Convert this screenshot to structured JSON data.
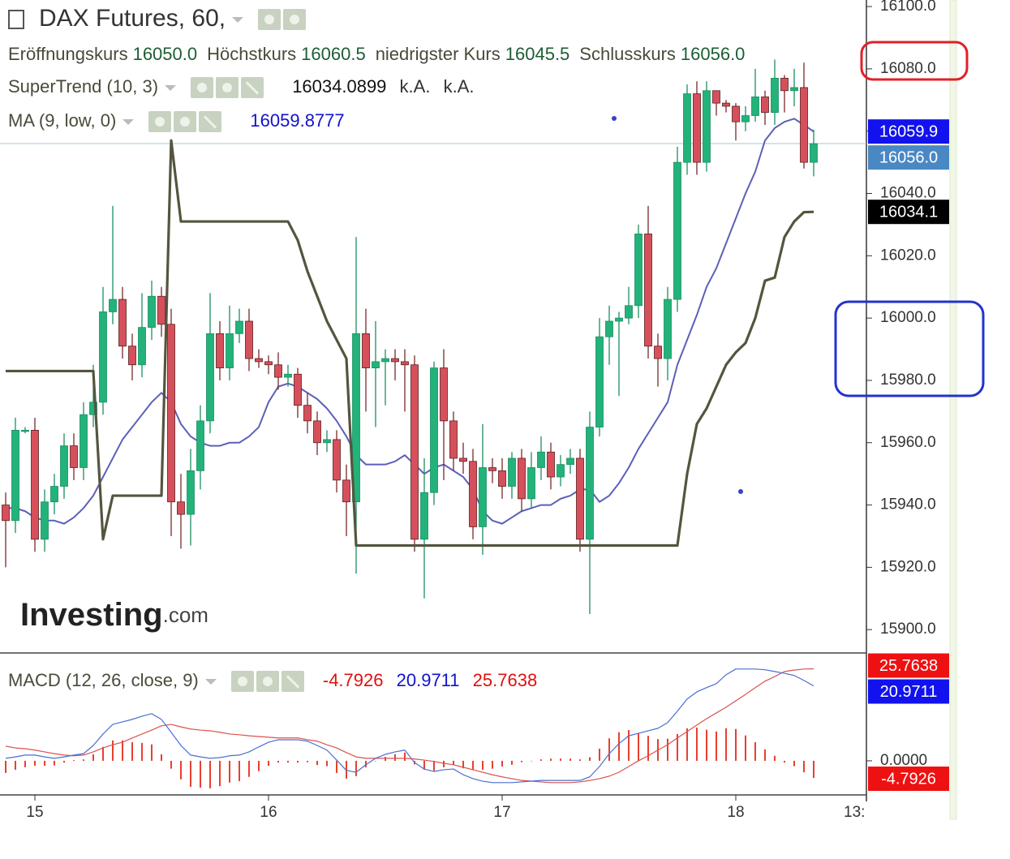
{
  "chart_data": {
    "type": "candlestick",
    "title": "DAX Futures, 60,",
    "ohlc_legend": [
      {
        "label": "Eröffnungskurs",
        "value": "16050.0"
      },
      {
        "label": "Höchstkurs",
        "value": "16060.5"
      },
      {
        "label": "niedrigster Kurs",
        "value": "16045.5"
      },
      {
        "label": "Schlusskurs",
        "value": "16056.0"
      }
    ],
    "categories": [
      null,
      null,
      null,
      "15",
      null,
      null,
      null,
      null,
      null,
      null,
      null,
      null,
      null,
      null,
      null,
      null,
      null,
      null,
      null,
      null,
      null,
      null,
      null,
      null,
      null,
      null,
      null,
      "16",
      null,
      null,
      null,
      null,
      null,
      null,
      null,
      null,
      null,
      null,
      null,
      null,
      null,
      null,
      null,
      null,
      null,
      null,
      null,
      null,
      null,
      null,
      null,
      "17",
      null,
      null,
      null,
      null,
      null,
      null,
      null,
      null,
      null,
      null,
      null,
      null,
      null,
      null,
      null,
      null,
      null,
      null,
      null,
      null,
      null,
      null,
      null,
      "18",
      null,
      null,
      null,
      null,
      null,
      null,
      null,
      null
    ],
    "x_edge_label": "13:",
    "open": [
      15940,
      15935,
      15964,
      15964,
      15929,
      15941,
      15946,
      15959,
      15952,
      15969,
      15973,
      16002,
      16006,
      15991,
      15985,
      15997,
      16007,
      15998,
      15941,
      15937,
      15951,
      15967,
      15995,
      15984,
      15995,
      15999,
      15987,
      15986,
      15985,
      15981,
      15982,
      15972,
      15967,
      15960,
      15961,
      15948,
      15941,
      15995,
      15984,
      15986,
      15987,
      15986,
      15985,
      15929,
      15944,
      15984,
      15967,
      15955,
      15954,
      15933,
      15952,
      15951,
      15946,
      15955,
      15942,
      15952,
      15957,
      15949,
      15953,
      15955,
      15929,
      15965,
      15994,
      15999,
      16000,
      16004,
      16027,
      15991,
      15987,
      16006,
      16050,
      16072,
      16050,
      16073,
      16069,
      16068,
      16063,
      16065,
      16071,
      16066,
      16077,
      16073,
      16074,
      16050
    ],
    "high": [
      15944,
      15968,
      15965,
      15968,
      15945,
      15950,
      15963,
      15963,
      15973,
      15985,
      16010,
      16036,
      16010,
      15995,
      16008,
      16012,
      16010,
      16003,
      15950,
      15958,
      15972,
      16008,
      15999,
      16004,
      16003,
      16003,
      15990,
      15988,
      15989,
      15985,
      15984,
      15976,
      15970,
      15964,
      15964,
      15953,
      16026,
      16003,
      15999,
      15990,
      15990,
      15990,
      15988,
      15955,
      15986,
      15990,
      15970,
      15960,
      15958,
      15966,
      15955,
      15955,
      15957,
      15958,
      15957,
      15962,
      15960,
      15956,
      15958,
      15958,
      15970,
      16000,
      16004,
      16002,
      16010,
      16030,
      16036,
      15995,
      16010,
      16055,
      16075,
      16076,
      16076,
      16073,
      16070,
      16069,
      16068,
      16080,
      16073,
      16083,
      16078,
      16080,
      16082,
      16060.5
    ],
    "low": [
      15920,
      15931,
      15963,
      15925,
      15925,
      15937,
      15942,
      15948,
      15948,
      15965,
      15969,
      15998,
      15987,
      15980,
      15981,
      15993,
      15994,
      15930,
      15926,
      15927,
      15945,
      15963,
      15980,
      15980,
      15992,
      15983,
      15984,
      15982,
      15977,
      15978,
      15968,
      15963,
      15956,
      15957,
      15944,
      15930,
      15918,
      15970,
      15965,
      15972,
      15980,
      15970,
      15925,
      15910,
      15940,
      15948,
      15951,
      15950,
      15929,
      15924,
      15947,
      15942,
      15942,
      15938,
      15939,
      15948,
      15945,
      15946,
      15950,
      15925,
      15905,
      15962,
      15985,
      15975,
      15998,
      16000,
      15987,
      15978,
      15980,
      16002,
      16046,
      16046,
      16047,
      16065,
      16066,
      16057,
      16060,
      16063,
      16062,
      16062,
      16066,
      16068,
      16048,
      16045.5
    ],
    "close": [
      15935,
      15964,
      15964,
      15929,
      15941,
      15946,
      15959,
      15952,
      15969,
      15973,
      16002,
      16006,
      15991,
      15985,
      15997,
      16007,
      15998,
      15941,
      15937,
      15951,
      15967,
      15995,
      15984,
      15995,
      15999,
      15987,
      15986,
      15985,
      15981,
      15982,
      15972,
      15967,
      15960,
      15961,
      15948,
      15941,
      15995,
      15984,
      15986,
      15987,
      15986,
      15985,
      15929,
      15944,
      15984,
      15967,
      15955,
      15954,
      15933,
      15952,
      15951,
      15946,
      15955,
      15942,
      15952,
      15957,
      15949,
      15953,
      15955,
      15929,
      15965,
      15994,
      15999,
      16000,
      16004,
      16027,
      15991,
      15987,
      16006,
      16050,
      16072,
      16050,
      16073,
      16069,
      16068,
      16063,
      16065,
      16071,
      16066,
      16077,
      16073,
      16074,
      16050,
      16056
    ],
    "up_color": "#22b27a",
    "down_color": "#d6505c",
    "close_label": "16056.0",
    "close_label_color": "#4a88c4",
    "ylim": [
      15892.5,
      16102.1
    ],
    "yticks": [
      {
        "value": 15900,
        "label": "15900.0"
      },
      {
        "value": 15920,
        "label": "15920.0"
      },
      {
        "value": 15940,
        "label": "15940.0"
      },
      {
        "value": 15960,
        "label": "15960.0"
      },
      {
        "value": 15980,
        "label": "15980.0"
      },
      {
        "value": 16000,
        "label": "16000.0"
      },
      {
        "value": 16020,
        "label": "16020.0"
      },
      {
        "value": 16040,
        "label": "16040.0"
      },
      {
        "value": 16060,
        "label": "16060.0"
      },
      {
        "value": 16080,
        "label": "16080.0"
      },
      {
        "value": 16100,
        "label": "16100.0"
      }
    ],
    "supertrend": {
      "name": "SuperTrend (10, 3)",
      "color": "#55553f",
      "label_color": "#000000",
      "value_label": "16034.1",
      "legend_extra": [
        "k.A.",
        "k.A."
      ],
      "values": [
        15983,
        15983,
        15983,
        15983,
        15983,
        15983,
        15983,
        15983,
        15983,
        15983,
        15929,
        15943,
        15943,
        15943,
        15943,
        15943,
        15943,
        16057,
        16031,
        16031,
        16031,
        16031,
        16031,
        16031,
        16031,
        16031,
        16031,
        16031,
        16031,
        16031,
        16025,
        16015,
        16007,
        15999,
        15993,
        15987,
        15927,
        15927,
        15927,
        15927,
        15927,
        15927,
        15927,
        15927,
        15927,
        15927,
        15927,
        15927,
        15927,
        15927,
        15927,
        15927,
        15927,
        15927,
        15927,
        15927,
        15927,
        15927,
        15927,
        15927,
        15927,
        15927,
        15927,
        15927,
        15927,
        15927,
        15927,
        15927,
        15927,
        15927,
        15950,
        15966,
        15971,
        15978,
        15985,
        15989,
        15992,
        16000,
        16012,
        16013,
        16026,
        16031,
        16034,
        16034.0899
      ]
    },
    "ma": {
      "name": "MA (9, low, 0)",
      "color": "#5b60b8",
      "label_color": "#1212ee",
      "value_label": "16059.9",
      "values": [
        15939,
        15939,
        15938,
        15936,
        15935,
        15935,
        15934,
        15936,
        15939,
        15943,
        15949,
        15955,
        15961,
        15965,
        15969,
        15973,
        15976,
        15973,
        15966,
        15962,
        15960,
        15959,
        15959,
        15960,
        15960,
        15962,
        15965,
        15973,
        15978,
        15979,
        15978,
        15976,
        15974,
        15971,
        15967,
        15962,
        15956,
        15953,
        15953,
        15953,
        15954,
        15956,
        15953,
        15950,
        15952,
        15953,
        15951,
        15949,
        15945,
        15938,
        15935,
        15934,
        15936,
        15938,
        15939,
        15940,
        15940,
        15942,
        15943,
        15945,
        15945,
        15941,
        15943,
        15947,
        15952,
        15958,
        15963,
        15968,
        15973,
        15985,
        15993,
        16001,
        16010,
        16016,
        16024,
        16032,
        16040,
        16047,
        16057,
        16061,
        16063,
        16064,
        16062,
        16059.8777
      ]
    },
    "macd": {
      "name": "MACD (12, 26, close, 9)",
      "ylim": [
        -9.1,
        30.2
      ],
      "yticks": [
        {
          "value": 0,
          "label": "0.0000"
        }
      ],
      "histogram": {
        "color": "#e8402e",
        "values": [
          -3.4,
          -2.5,
          -1.8,
          -1.4,
          -1.4,
          -1.3,
          -0.5,
          0.2,
          0.4,
          1.8,
          3.9,
          5.7,
          5.7,
          5.2,
          5.0,
          4.6,
          1.8,
          -2.2,
          -5.2,
          -7.3,
          -7.5,
          -7.7,
          -7.1,
          -6.1,
          -5.7,
          -4.5,
          -2.9,
          -1.4,
          -0.5,
          -0.5,
          -0.5,
          -0.4,
          -1.2,
          -1.5,
          -3.4,
          -5.0,
          -4.3,
          -1.8,
          0.0,
          1.1,
          1.8,
          2.3,
          -1.0,
          -2.5,
          -2.8,
          -1.8,
          -1.2,
          -2.1,
          -2.5,
          -2.5,
          -2.2,
          -1.6,
          -1.1,
          -0.4,
          0.0,
          0.4,
          0.6,
          0.6,
          0.6,
          0.4,
          1.0,
          3.4,
          6.3,
          8.0,
          8.6,
          7.7,
          7.0,
          6.1,
          6.2,
          7.5,
          9.1,
          9.3,
          8.7,
          8.2,
          9.1,
          8.9,
          7.1,
          5.2,
          3.2,
          1.4,
          -0.5,
          -1.5,
          -3.2,
          -4.7926
        ]
      },
      "macd_line": {
        "color": "#4a6fd0",
        "label_color": "#1212ee",
        "values": [
          0.7,
          1.1,
          1.6,
          1.6,
          1.1,
          0.7,
          1.1,
          1.6,
          2.0,
          4.3,
          7.5,
          10.2,
          10.9,
          11.6,
          12.5,
          13.2,
          11.6,
          8.0,
          4.3,
          1.6,
          1.1,
          0.7,
          0.9,
          1.4,
          1.6,
          2.5,
          3.9,
          5.2,
          5.9,
          5.9,
          5.9,
          5.5,
          4.3,
          3.0,
          0.2,
          -2.7,
          -3.2,
          -1.1,
          0.7,
          1.8,
          2.5,
          3.0,
          -0.5,
          -2.3,
          -3.0,
          -2.5,
          -2.3,
          -3.9,
          -5.0,
          -5.7,
          -6.1,
          -6.1,
          -6.1,
          -5.9,
          -5.7,
          -5.5,
          -5.5,
          -5.5,
          -5.5,
          -5.5,
          -4.5,
          -1.6,
          2.0,
          4.8,
          7.0,
          7.7,
          8.4,
          9.1,
          10.7,
          13.9,
          17.3,
          19.3,
          20.5,
          21.6,
          24.1,
          25.7,
          25.7,
          25.7,
          25.5,
          25.0,
          24.5,
          23.9,
          22.5,
          20.9711
        ]
      },
      "signal": {
        "color": "#d9534f",
        "label_color": "#ee1111",
        "values": [
          4.1,
          3.6,
          3.4,
          3.0,
          2.5,
          2.0,
          1.6,
          1.4,
          1.6,
          2.5,
          3.6,
          4.5,
          5.2,
          6.4,
          7.5,
          8.6,
          9.8,
          10.2,
          9.5,
          8.9,
          8.6,
          8.4,
          8.0,
          7.5,
          7.3,
          7.0,
          6.8,
          6.6,
          6.4,
          6.4,
          6.4,
          5.9,
          5.5,
          4.5,
          3.6,
          2.3,
          1.1,
          0.7,
          0.7,
          0.7,
          0.7,
          0.7,
          0.5,
          0.2,
          -0.2,
          -0.7,
          -1.1,
          -1.8,
          -2.5,
          -3.2,
          -3.9,
          -4.5,
          -5.0,
          -5.5,
          -5.7,
          -5.9,
          -6.1,
          -6.1,
          -6.1,
          -5.9,
          -5.5,
          -5.0,
          -4.3,
          -3.2,
          -1.6,
          0.0,
          1.4,
          3.0,
          4.5,
          6.4,
          8.2,
          10.0,
          11.8,
          13.4,
          15.0,
          16.8,
          18.6,
          20.5,
          22.3,
          23.6,
          25.0,
          25.4,
          25.7,
          25.7638
        ]
      }
    },
    "logo": [
      "Investing",
      ".com"
    ]
  }
}
